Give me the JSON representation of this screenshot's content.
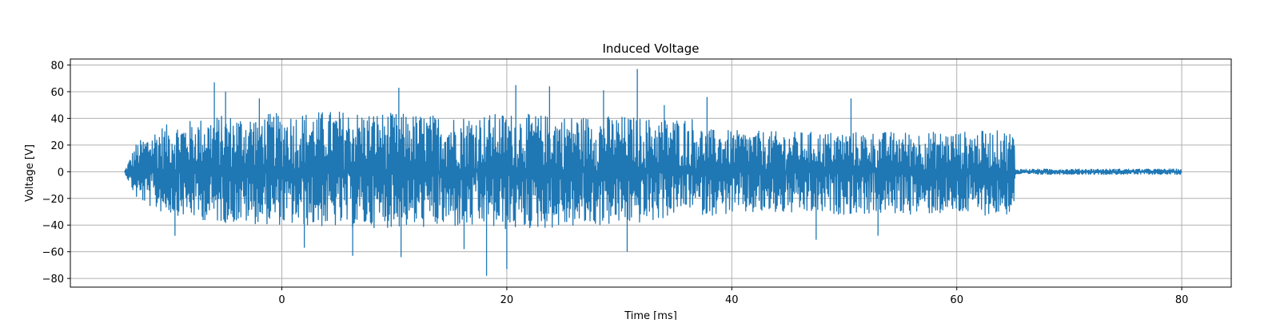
{
  "chart_data": {
    "type": "line",
    "title": "Induced Voltage",
    "xlabel": "Time [ms]",
    "ylabel": "Voltage [V]",
    "xlim": [
      -18.8,
      84.4
    ],
    "ylim": [
      -86.5,
      84.5
    ],
    "x_ticks": [
      0,
      20,
      40,
      60,
      80
    ],
    "y_ticks": [
      -80,
      -60,
      -40,
      -20,
      0,
      20,
      40,
      60,
      80
    ],
    "x_tick_labels": [
      "0",
      "20",
      "40",
      "60",
      "80"
    ],
    "y_tick_labels": [
      "−80",
      "−60",
      "−40",
      "−20",
      "0",
      "20",
      "40",
      "60",
      "80"
    ],
    "grid": true,
    "line_color": "#1f77b4",
    "series": [
      {
        "x_range": [
          -14,
          80
        ],
        "envelope": {
          "x": [
            -14,
            -13,
            -11,
            -6,
            0,
            5,
            10,
            15,
            20,
            25,
            30,
            33,
            36.5,
            37.5,
            40,
            45,
            50,
            55,
            60,
            64,
            65.1,
            65.2,
            70,
            75,
            80
          ],
          "upper": [
            0,
            21,
            34,
            42,
            44,
            46,
            44,
            42,
            44,
            42,
            42,
            40,
            41,
            32,
            31,
            30,
            30,
            30,
            30,
            31,
            30,
            2,
            2,
            2,
            2
          ],
          "lower": [
            0,
            -20,
            -30,
            -38,
            -40,
            -42,
            -42,
            -42,
            -44,
            -42,
            -40,
            -38,
            -27,
            -33,
            -32,
            -32,
            -32,
            -32,
            -32,
            -33,
            -32,
            -2,
            -2,
            -2,
            -2
          ]
        },
        "peaks": [
          {
            "x": -6.0,
            "y": 67
          },
          {
            "x": -5.0,
            "y": 60
          },
          {
            "x": -2.0,
            "y": 55
          },
          {
            "x": 10.4,
            "y": 63
          },
          {
            "x": 20.8,
            "y": 65
          },
          {
            "x": 23.8,
            "y": 64
          },
          {
            "x": 28.6,
            "y": 61
          },
          {
            "x": 31.6,
            "y": 77
          },
          {
            "x": 34.0,
            "y": 50
          },
          {
            "x": 37.8,
            "y": 56
          },
          {
            "x": 50.6,
            "y": 55
          },
          {
            "x": 18.2,
            "y": -78
          },
          {
            "x": 20.0,
            "y": -73
          },
          {
            "x": 6.3,
            "y": -63
          },
          {
            "x": 10.6,
            "y": -64
          },
          {
            "x": 2.0,
            "y": -57
          },
          {
            "x": 30.7,
            "y": -60
          },
          {
            "x": 16.2,
            "y": -58
          },
          {
            "x": 47.5,
            "y": -51
          },
          {
            "x": -9.5,
            "y": -48
          },
          {
            "x": 53.0,
            "y": -48
          }
        ]
      }
    ]
  }
}
